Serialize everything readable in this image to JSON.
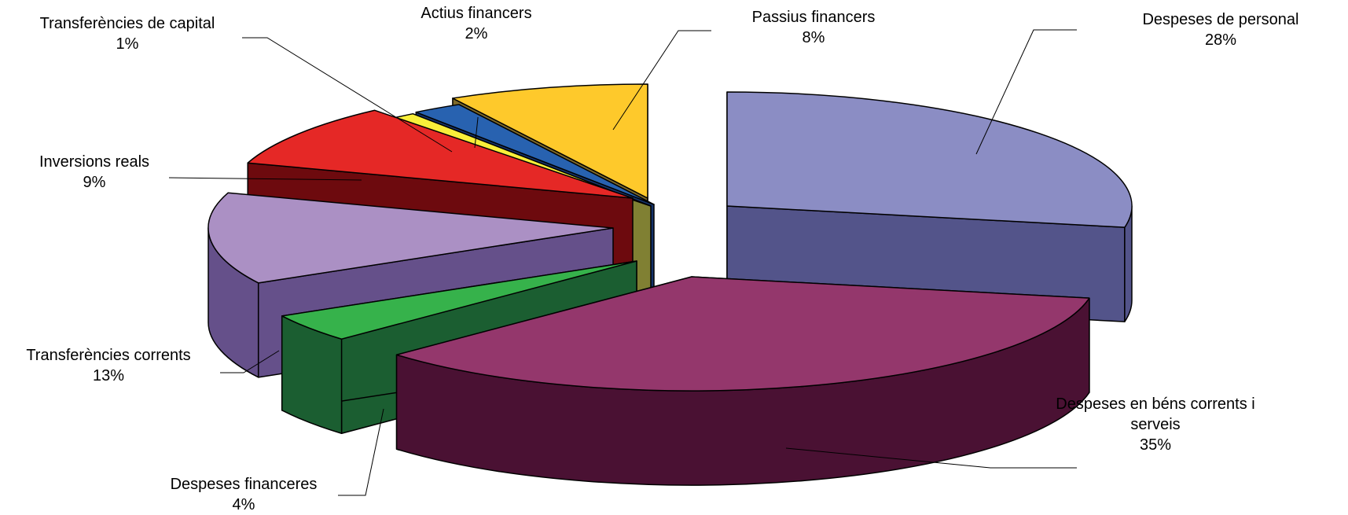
{
  "chart_data": {
    "type": "pie",
    "style": "3d-exploded",
    "title": "",
    "slices": [
      {
        "label": "Despeses de personal",
        "value": 28,
        "pct_label": "28%",
        "top_color": "#8b8dc4",
        "side_color": "#53548a"
      },
      {
        "label": "Despeses en béns corrents i serveis",
        "label_lines": [
          "Despeses en béns corrents i",
          "serveis"
        ],
        "value": 35,
        "pct_label": "35%",
        "top_color": "#94376c",
        "side_color": "#4a1133"
      },
      {
        "label": "Despeses financeres",
        "value": 4,
        "pct_label": "4%",
        "top_color": "#36b24b",
        "side_color": "#1b5e31"
      },
      {
        "label": "Transferències corrents",
        "value": 13,
        "pct_label": "13%",
        "top_color": "#ab90c4",
        "side_color": "#65508a"
      },
      {
        "label": "Inversions reals",
        "value": 9,
        "pct_label": "9%",
        "top_color": "#e52826",
        "side_color": "#6d0a0e"
      },
      {
        "label": "Transferències de capital",
        "value": 1,
        "pct_label": "1%",
        "top_color": "#f8ee3a",
        "side_color": "#808033"
      },
      {
        "label": "Actius financers",
        "value": 2,
        "pct_label": "2%",
        "top_color": "#2862b0",
        "side_color": "#15336a"
      },
      {
        "label": "Passius financers",
        "value": 8,
        "pct_label": "8%",
        "top_color": "#fec92b",
        "side_color": "#7e6a2a"
      }
    ]
  }
}
